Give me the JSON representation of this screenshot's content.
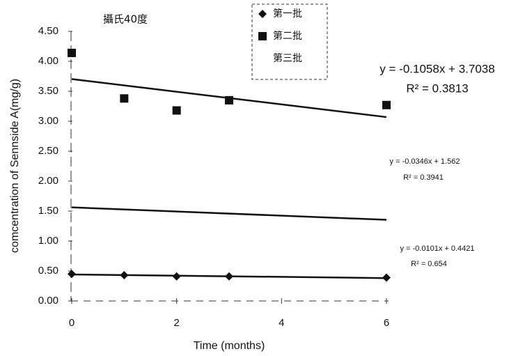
{
  "chart_data": {
    "type": "scatter",
    "title": "攝氏40度",
    "x_label": "Time (months)",
    "y_label": "comcentration of Sennside A(mg/g)",
    "x": [
      0,
      1,
      2,
      3,
      6
    ],
    "xlim": [
      0,
      6
    ],
    "xticks": [
      0,
      2,
      4,
      6
    ],
    "ylim": [
      0,
      4.5
    ],
    "yticks": [
      {
        "value": 0,
        "label": "0.00"
      },
      {
        "value": 0.5,
        "label": "0.50"
      },
      {
        "value": 1,
        "label": "1.00"
      },
      {
        "value": 1.5,
        "label": "1.50"
      },
      {
        "value": 2,
        "label": "2.00"
      },
      {
        "value": 2.5,
        "label": "2.50"
      },
      {
        "value": 3,
        "label": "3.00"
      },
      {
        "value": 3.5,
        "label": "3.50"
      },
      {
        "value": 4,
        "label": "4.00"
      },
      {
        "value": 4.5,
        "label": "4.50"
      }
    ],
    "grid": false,
    "legend": "top",
    "series": [
      {
        "name": "第一批",
        "color": "#111111",
        "marker": "diamond",
        "values": [
          0.45,
          0.43,
          0.41,
          0.41,
          0.39
        ],
        "trendline": {
          "slope": -0.0101,
          "intercept": 0.4421,
          "equation_label": "y = -0.0101x + 0.4421",
          "r2_label": "R² = 0.654"
        }
      },
      {
        "name": "第二批",
        "color": "#111111",
        "marker": "square",
        "values": [
          4.14,
          3.38,
          3.18,
          3.35,
          3.27
        ],
        "trendline": {
          "slope": -0.1058,
          "intercept": 3.7038,
          "equation_label": "y = -0.1058x + 3.7038",
          "r2_label": "R² = 0.3813"
        }
      },
      {
        "name": "第三批",
        "color": "#ffffff",
        "marker": "none",
        "values": [
          null,
          null,
          null,
          null,
          null
        ],
        "trendline": {
          "slope": -0.0346,
          "intercept": 1.562,
          "equation_label": "y = -0.0346x + 1.562",
          "r2_label": "R² = 0.3941"
        }
      }
    ]
  }
}
